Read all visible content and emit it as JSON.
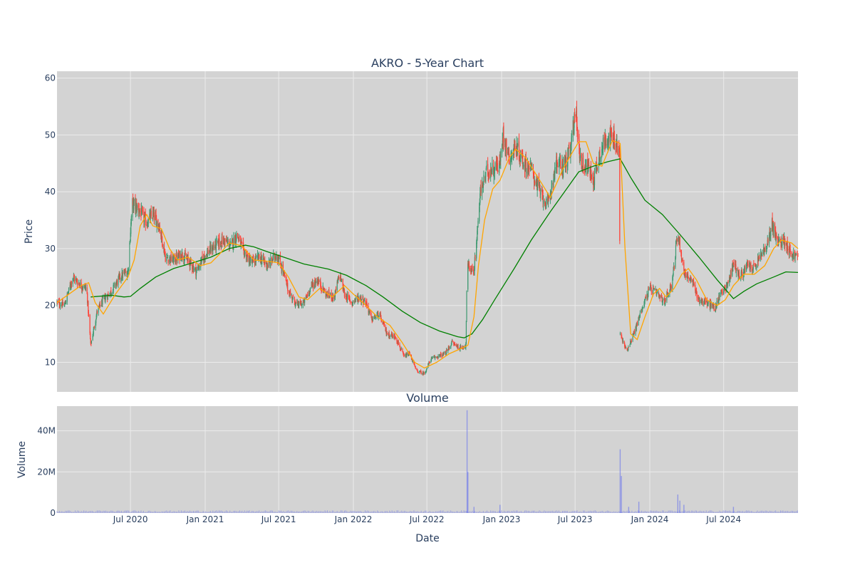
{
  "chart_data": {
    "type": "candlestick",
    "title": "AKRO - 5-Year Chart",
    "volume_title": "Volume",
    "xlabel": "Date",
    "ylabel": "Price",
    "volume_ylabel": "Volume",
    "x_ticks": [
      "Jul 2020",
      "Jan 2021",
      "Jul 2021",
      "Jan 2022",
      "Jul 2022",
      "Jan 2023",
      "Jul 2023",
      "Jan 2024",
      "Jul 2024"
    ],
    "x_tick_dates": [
      "2020-07-01",
      "2021-01-01",
      "2021-07-01",
      "2022-01-01",
      "2022-07-01",
      "2023-01-01",
      "2023-07-01",
      "2024-01-01",
      "2024-07-01"
    ],
    "x_range": [
      "2020-01-02",
      "2024-12-31"
    ],
    "price_ticks": [
      "10",
      "20",
      "30",
      "40",
      "50",
      "60"
    ],
    "price_tick_values": [
      10,
      20,
      30,
      40,
      50,
      60
    ],
    "price_range": [
      4.8,
      61.2
    ],
    "volume_ticks": [
      "0",
      "20M",
      "40M"
    ],
    "volume_tick_values": [
      0,
      20000000,
      40000000
    ],
    "volume_range": [
      0,
      52000000
    ],
    "grid": true,
    "colors": {
      "up": "#3d9970",
      "down": "#ff4136",
      "ma_short": "#ffa500",
      "ma_long": "#008000",
      "volume": "#6672ee",
      "plot_bg": "#d3d3d3",
      "grid": "#ebebeb",
      "text": "#2a3f5f"
    },
    "close_path": [
      [
        "2020-01-02",
        20.5
      ],
      [
        "2020-01-20",
        20.0
      ],
      [
        "2020-02-10",
        25.0
      ],
      [
        "2020-03-01",
        23.5
      ],
      [
        "2020-03-15",
        23.0
      ],
      [
        "2020-03-25",
        13.0
      ],
      [
        "2020-04-10",
        19.0
      ],
      [
        "2020-04-25",
        21.0
      ],
      [
        "2020-05-15",
        22.5
      ],
      [
        "2020-06-05",
        25.0
      ],
      [
        "2020-06-25",
        26.0
      ],
      [
        "2020-07-05",
        38.0
      ],
      [
        "2020-07-20",
        37.0
      ],
      [
        "2020-08-10",
        34.5
      ],
      [
        "2020-08-25",
        36.0
      ],
      [
        "2020-09-10",
        34.0
      ],
      [
        "2020-09-25",
        28.5
      ],
      [
        "2020-10-15",
        28.0
      ],
      [
        "2020-11-05",
        29.0
      ],
      [
        "2020-11-25",
        27.5
      ],
      [
        "2020-12-10",
        26.0
      ],
      [
        "2021-01-01",
        29.0
      ],
      [
        "2021-01-25",
        30.5
      ],
      [
        "2021-02-15",
        31.5
      ],
      [
        "2021-03-05",
        30.5
      ],
      [
        "2021-03-20",
        32.5
      ],
      [
        "2021-04-05",
        29.5
      ],
      [
        "2021-04-25",
        27.5
      ],
      [
        "2021-05-15",
        28.5
      ],
      [
        "2021-06-05",
        27.0
      ],
      [
        "2021-06-25",
        29.0
      ],
      [
        "2021-07-10",
        26.5
      ],
      [
        "2021-07-25",
        22.5
      ],
      [
        "2021-08-15",
        20.0
      ],
      [
        "2021-09-01",
        20.5
      ],
      [
        "2021-09-20",
        23.5
      ],
      [
        "2021-10-05",
        24.5
      ],
      [
        "2021-10-25",
        22.0
      ],
      [
        "2021-11-15",
        21.5
      ],
      [
        "2021-11-28",
        25.5
      ],
      [
        "2021-12-10",
        22.0
      ],
      [
        "2021-12-28",
        20.5
      ],
      [
        "2022-01-15",
        21.5
      ],
      [
        "2022-02-01",
        20.5
      ],
      [
        "2022-02-15",
        17.5
      ],
      [
        "2022-03-05",
        18.5
      ],
      [
        "2022-03-25",
        15.0
      ],
      [
        "2022-04-15",
        14.5
      ],
      [
        "2022-05-05",
        11.0
      ],
      [
        "2022-05-20",
        11.5
      ],
      [
        "2022-06-05",
        8.5
      ],
      [
        "2022-06-25",
        8.0
      ],
      [
        "2022-07-10",
        10.5
      ],
      [
        "2022-07-25",
        11.0
      ],
      [
        "2022-08-15",
        11.5
      ],
      [
        "2022-09-01",
        13.5
      ],
      [
        "2022-09-20",
        12.5
      ],
      [
        "2022-10-05",
        13.0
      ],
      [
        "2022-10-08",
        27.0
      ],
      [
        "2022-10-25",
        26.0
      ],
      [
        "2022-11-10",
        40.0
      ],
      [
        "2022-11-25",
        43.5
      ],
      [
        "2022-12-10",
        44.0
      ],
      [
        "2022-12-28",
        45.0
      ],
      [
        "2023-01-05",
        50.0
      ],
      [
        "2023-01-20",
        46.0
      ],
      [
        "2023-02-05",
        48.0
      ],
      [
        "2023-02-25",
        45.0
      ],
      [
        "2023-03-15",
        44.0
      ],
      [
        "2023-04-05",
        40.0
      ],
      [
        "2023-04-25",
        37.5
      ],
      [
        "2023-05-15",
        45.0
      ],
      [
        "2023-06-01",
        44.5
      ],
      [
        "2023-06-20",
        47.0
      ],
      [
        "2023-07-01",
        55.0
      ],
      [
        "2023-07-15",
        45.0
      ],
      [
        "2023-08-01",
        44.5
      ],
      [
        "2023-08-15",
        42.0
      ],
      [
        "2023-09-01",
        47.0
      ],
      [
        "2023-09-20",
        50.0
      ],
      [
        "2023-10-05",
        49.0
      ],
      [
        "2023-10-18",
        47.0
      ],
      [
        "2023-10-20",
        15.0
      ],
      [
        "2023-11-05",
        12.0
      ],
      [
        "2023-11-25",
        15.5
      ],
      [
        "2023-12-15",
        20.0
      ],
      [
        "2024-01-01",
        23.0
      ],
      [
        "2024-01-20",
        22.0
      ],
      [
        "2024-02-05",
        20.5
      ],
      [
        "2024-02-25",
        24.0
      ],
      [
        "2024-03-10",
        33.0
      ],
      [
        "2024-03-25",
        26.0
      ],
      [
        "2024-04-15",
        24.0
      ],
      [
        "2024-05-01",
        21.0
      ],
      [
        "2024-05-20",
        20.5
      ],
      [
        "2024-06-10",
        19.5
      ],
      [
        "2024-06-25",
        22.5
      ],
      [
        "2024-07-10",
        23.5
      ],
      [
        "2024-07-25",
        27.5
      ],
      [
        "2024-08-10",
        25.0
      ],
      [
        "2024-08-28",
        27.0
      ],
      [
        "2024-09-15",
        26.5
      ],
      [
        "2024-10-01",
        29.0
      ],
      [
        "2024-10-15",
        30.0
      ],
      [
        "2024-10-28",
        34.5
      ],
      [
        "2024-11-10",
        31.0
      ],
      [
        "2024-11-28",
        31.5
      ],
      [
        "2024-12-15",
        29.0
      ],
      [
        "2024-12-31",
        28.5
      ]
    ],
    "ma_short_path": [
      [
        "2020-01-02",
        20.5
      ],
      [
        "2020-03-01",
        23.5
      ],
      [
        "2020-03-20",
        24.0
      ],
      [
        "2020-04-05",
        20.5
      ],
      [
        "2020-04-25",
        18.5
      ],
      [
        "2020-05-25",
        22.0
      ],
      [
        "2020-06-25",
        25.0
      ],
      [
        "2020-07-10",
        28.0
      ],
      [
        "2020-07-25",
        34.0
      ],
      [
        "2020-08-10",
        36.0
      ],
      [
        "2020-08-25",
        34.0
      ],
      [
        "2020-09-15",
        33.5
      ],
      [
        "2020-10-05",
        30.0
      ],
      [
        "2020-10-25",
        28.0
      ],
      [
        "2020-11-20",
        28.5
      ],
      [
        "2020-12-20",
        27.0
      ],
      [
        "2021-01-15",
        27.5
      ],
      [
        "2021-02-05",
        29.0
      ],
      [
        "2021-03-01",
        31.0
      ],
      [
        "2021-04-01",
        30.5
      ],
      [
        "2021-05-01",
        28.0
      ],
      [
        "2021-06-01",
        27.8
      ],
      [
        "2021-07-01",
        27.5
      ],
      [
        "2021-07-25",
        25.0
      ],
      [
        "2021-08-20",
        21.5
      ],
      [
        "2021-09-10",
        21.0
      ],
      [
        "2021-10-10",
        23.0
      ],
      [
        "2021-11-10",
        21.5
      ],
      [
        "2021-12-10",
        23.5
      ],
      [
        "2022-01-01",
        22.0
      ],
      [
        "2022-02-01",
        20.0
      ],
      [
        "2022-03-01",
        18.0
      ],
      [
        "2022-04-01",
        16.5
      ],
      [
        "2022-05-01",
        13.5
      ],
      [
        "2022-06-01",
        10.0
      ],
      [
        "2022-06-25",
        9.0
      ],
      [
        "2022-07-25",
        10.0
      ],
      [
        "2022-08-25",
        11.5
      ],
      [
        "2022-09-25",
        12.5
      ],
      [
        "2022-10-10",
        13.0
      ],
      [
        "2022-10-25",
        18.0
      ],
      [
        "2022-11-05",
        27.0
      ],
      [
        "2022-11-20",
        35.0
      ],
      [
        "2022-12-10",
        40.5
      ],
      [
        "2022-12-28",
        42.0
      ],
      [
        "2023-01-20",
        46.0
      ],
      [
        "2023-02-05",
        47.5
      ],
      [
        "2023-03-01",
        46.0
      ],
      [
        "2023-04-05",
        42.0
      ],
      [
        "2023-05-01",
        39.0
      ],
      [
        "2023-06-01",
        44.0
      ],
      [
        "2023-06-25",
        47.0
      ],
      [
        "2023-07-10",
        48.8
      ],
      [
        "2023-07-28",
        48.8
      ],
      [
        "2023-08-15",
        45.0
      ],
      [
        "2023-09-05",
        44.5
      ],
      [
        "2023-10-01",
        49.0
      ],
      [
        "2023-10-20",
        48.5
      ],
      [
        "2023-11-01",
        30.0
      ],
      [
        "2023-11-15",
        15.0
      ],
      [
        "2023-12-01",
        14.0
      ],
      [
        "2023-12-20",
        18.0
      ],
      [
        "2024-01-10",
        22.0
      ],
      [
        "2024-01-25",
        23.0
      ],
      [
        "2024-02-10",
        21.5
      ],
      [
        "2024-03-01",
        23.0
      ],
      [
        "2024-03-20",
        25.5
      ],
      [
        "2024-04-05",
        26.5
      ],
      [
        "2024-04-25",
        24.5
      ],
      [
        "2024-05-20",
        21.0
      ],
      [
        "2024-06-15",
        20.0
      ],
      [
        "2024-07-05",
        21.0
      ],
      [
        "2024-07-25",
        23.5
      ],
      [
        "2024-08-20",
        25.5
      ],
      [
        "2024-09-15",
        25.5
      ],
      [
        "2024-10-10",
        27.0
      ],
      [
        "2024-11-01",
        30.0
      ],
      [
        "2024-11-20",
        31.5
      ],
      [
        "2024-12-15",
        31.0
      ],
      [
        "2024-12-31",
        30.0
      ]
    ],
    "ma_long_path": [
      [
        "2020-03-25",
        21.5
      ],
      [
        "2020-05-15",
        21.8
      ],
      [
        "2020-06-15",
        21.5
      ],
      [
        "2020-07-01",
        21.6
      ],
      [
        "2020-07-25",
        23.0
      ],
      [
        "2020-09-01",
        25.0
      ],
      [
        "2020-10-15",
        26.5
      ],
      [
        "2020-12-01",
        27.5
      ],
      [
        "2021-01-15",
        28.5
      ],
      [
        "2021-03-01",
        30.0
      ],
      [
        "2021-04-10",
        30.6
      ],
      [
        "2021-05-01",
        30.3
      ],
      [
        "2021-06-01",
        29.5
      ],
      [
        "2021-07-01",
        28.8
      ],
      [
        "2021-09-01",
        27.3
      ],
      [
        "2021-11-01",
        26.4
      ],
      [
        "2021-12-15",
        25.3
      ],
      [
        "2022-02-01",
        23.5
      ],
      [
        "2022-03-15",
        21.5
      ],
      [
        "2022-05-01",
        19.0
      ],
      [
        "2022-06-15",
        17.0
      ],
      [
        "2022-08-01",
        15.5
      ],
      [
        "2022-09-15",
        14.5
      ],
      [
        "2022-10-01",
        14.3
      ],
      [
        "2022-10-20",
        15.0
      ],
      [
        "2022-11-15",
        17.5
      ],
      [
        "2022-12-15",
        21.0
      ],
      [
        "2023-02-01",
        26.5
      ],
      [
        "2023-03-15",
        31.5
      ],
      [
        "2023-05-01",
        36.5
      ],
      [
        "2023-06-15",
        41.0
      ],
      [
        "2023-07-10",
        43.5
      ],
      [
        "2023-08-15",
        44.5
      ],
      [
        "2023-09-20",
        45.3
      ],
      [
        "2023-10-20",
        45.8
      ],
      [
        "2023-11-15",
        42.5
      ],
      [
        "2023-12-20",
        38.5
      ],
      [
        "2024-02-01",
        36.0
      ],
      [
        "2024-03-15",
        32.5
      ],
      [
        "2024-05-01",
        28.5
      ],
      [
        "2024-06-15",
        24.5
      ],
      [
        "2024-07-25",
        21.2
      ],
      [
        "2024-08-20",
        22.5
      ],
      [
        "2024-09-20",
        23.8
      ],
      [
        "2024-11-01",
        25.0
      ],
      [
        "2024-12-01",
        25.9
      ],
      [
        "2024-12-31",
        25.8
      ]
    ],
    "volume_spikes": [
      [
        "2022-10-08",
        50000000
      ],
      [
        "2022-10-10",
        20000000
      ],
      [
        "2022-10-25",
        3000000
      ],
      [
        "2022-12-28",
        4000000
      ],
      [
        "2023-10-20",
        31000000
      ],
      [
        "2023-10-23",
        18000000
      ],
      [
        "2023-11-10",
        3000000
      ],
      [
        "2023-12-05",
        5500000
      ],
      [
        "2024-03-10",
        9000000
      ],
      [
        "2024-03-15",
        6000000
      ],
      [
        "2024-03-25",
        4000000
      ],
      [
        "2024-07-25",
        3000000
      ]
    ],
    "volume_base": 800000
  }
}
